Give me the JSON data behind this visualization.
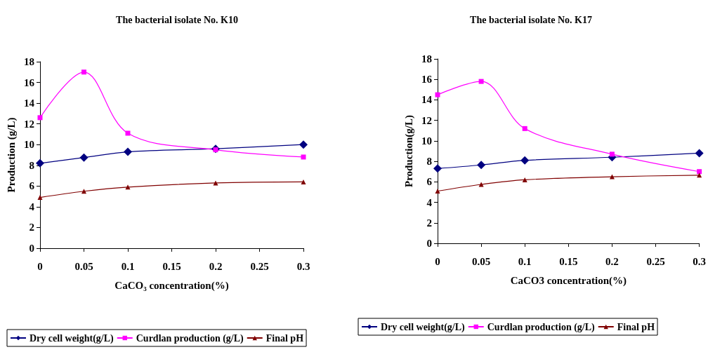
{
  "chart_data": [
    {
      "type": "line",
      "title": "The bacterial isolate No. K10",
      "xlabel": "CaCO₃ concentration(%)",
      "ylabel": "Production (g/L)",
      "x": [
        0,
        0.05,
        0.1,
        0.2,
        0.3
      ],
      "series": [
        {
          "name": "Dry cell weight(g/L)",
          "color": "#000080",
          "marker": "diamond",
          "values": [
            8.2,
            8.75,
            9.3,
            9.6,
            10.0
          ]
        },
        {
          "name": "Curdlan production (g/L)",
          "color": "#ff00ff",
          "marker": "square",
          "values": [
            12.6,
            17.0,
            11.1,
            9.5,
            8.8
          ]
        },
        {
          "name": "Final pH",
          "color": "#800000",
          "marker": "triangle",
          "values": [
            4.9,
            5.5,
            5.9,
            6.3,
            6.4
          ]
        }
      ],
      "xlim": [
        0,
        0.3
      ],
      "xticks": [
        0,
        0.05,
        0.1,
        0.15,
        0.2,
        0.25,
        0.3
      ],
      "ylim": [
        0,
        18
      ],
      "yticks": [
        0,
        2,
        4,
        6,
        8,
        10,
        12,
        14,
        16,
        18
      ],
      "grid": false,
      "legend": "bottom"
    },
    {
      "type": "line",
      "title": "The bacterial isolate No. K17",
      "xlabel": "CaCO3 concentration(%)",
      "ylabel": "Production(g/L)",
      "x": [
        0,
        0.05,
        0.1,
        0.2,
        0.3
      ],
      "series": [
        {
          "name": "Dry cell weight(g/L)",
          "color": "#000080",
          "marker": "diamond",
          "values": [
            7.3,
            7.65,
            8.1,
            8.4,
            8.8
          ]
        },
        {
          "name": "Curdlan production (g/L)",
          "color": "#ff00ff",
          "marker": "square",
          "values": [
            14.5,
            15.8,
            11.2,
            8.7,
            7.0
          ]
        },
        {
          "name": "Final pH",
          "color": "#800000",
          "marker": "triangle",
          "values": [
            5.1,
            5.75,
            6.2,
            6.5,
            6.65
          ]
        }
      ],
      "xlim": [
        0,
        0.3
      ],
      "xticks": [
        0,
        0.05,
        0.1,
        0.15,
        0.2,
        0.25,
        0.3
      ],
      "ylim": [
        0,
        18
      ],
      "yticks": [
        0,
        2,
        4,
        6,
        8,
        10,
        12,
        14,
        16,
        18
      ],
      "grid": false,
      "legend": "bottom"
    }
  ]
}
